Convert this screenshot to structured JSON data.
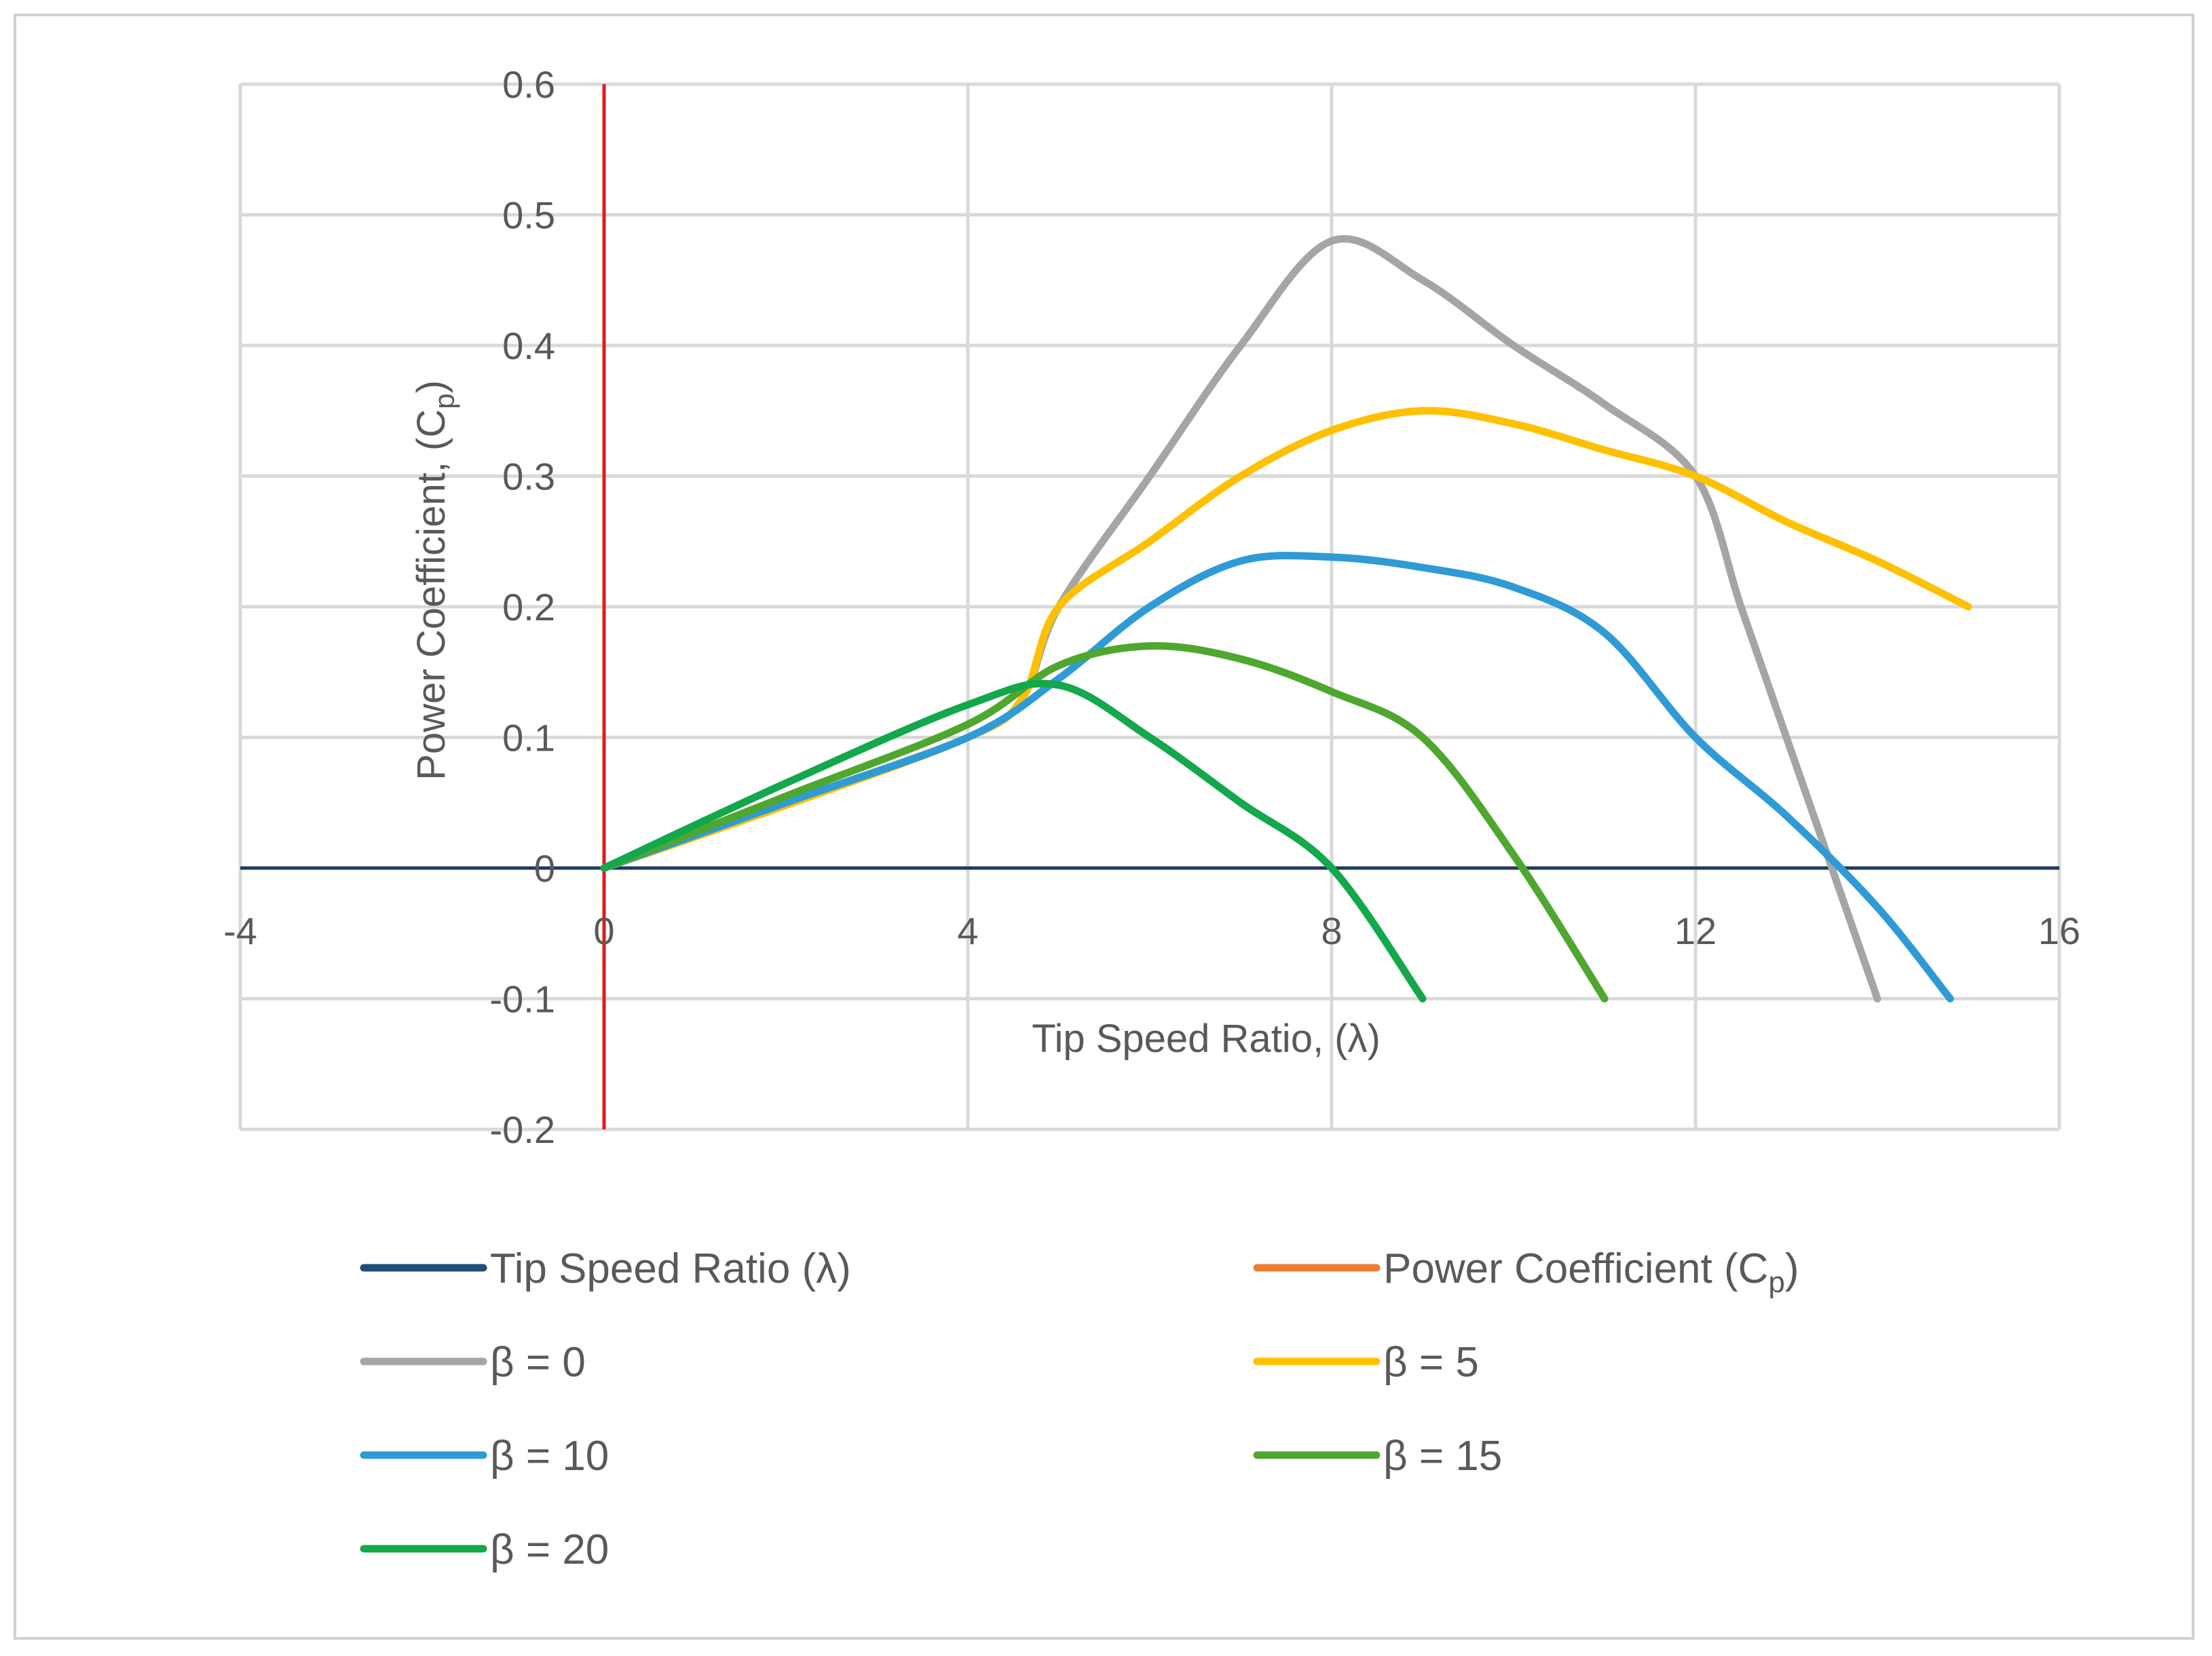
{
  "chart_data": {
    "type": "line",
    "title": "",
    "xlabel": "Tip Speed Ratio, (λ)",
    "ylabel_main": "Power Coefficient, (C",
    "ylabel_sub": "p",
    "ylabel_end": ")",
    "xlim": [
      -4,
      16
    ],
    "ylim": [
      -0.2,
      0.6
    ],
    "xticks": [
      -4,
      0,
      4,
      8,
      12,
      16
    ],
    "yticks": [
      -0.2,
      -0.1,
      0,
      0.1,
      0.2,
      0.3,
      0.4,
      0.5,
      0.6
    ],
    "grid": true,
    "legend_position": "bottom",
    "reference_lines": [
      {
        "name": "Tip Speed Ratio (λ)",
        "orientation": "horizontal",
        "at": 0,
        "color": "#1f3a60"
      },
      {
        "name": "Power Coefficient (Cp)",
        "orientation": "vertical",
        "at": 0,
        "color": "#e41a1c"
      }
    ],
    "legend": [
      {
        "main": "Tip Speed Ratio (λ)",
        "sub": "",
        "end": "",
        "color": "#1f4e79"
      },
      {
        "main": "Power Coefficient (C",
        "sub": "p",
        "end": ")",
        "color": "#ed7d31"
      },
      {
        "main": "β = 0",
        "sub": "",
        "end": "",
        "color": "#a5a5a5"
      },
      {
        "main": "β = 5",
        "sub": "",
        "end": "",
        "color": "#ffc000"
      },
      {
        "main": "β = 10",
        "sub": "",
        "end": "",
        "color": "#2e9bd6"
      },
      {
        "main": "β = 15",
        "sub": "",
        "end": "",
        "color": "#4ea72e"
      },
      {
        "main": "β = 20",
        "sub": "",
        "end": "",
        "color": "#12a84b"
      }
    ],
    "series": [
      {
        "name": "β = 0",
        "color": "#a5a5a5",
        "x": [
          0,
          2,
          4,
          4.6,
          5,
          6,
          7,
          8,
          9,
          10,
          11,
          12,
          12.5,
          13,
          14
        ],
        "y": [
          0,
          0.05,
          0.1,
          0.13,
          0.2,
          0.3,
          0.4,
          0.48,
          0.45,
          0.4,
          0.355,
          0.3,
          0.2,
          0.1,
          -0.1
        ]
      },
      {
        "name": "β = 5",
        "color": "#ffc000",
        "x": [
          0,
          2,
          4,
          4.6,
          5,
          6,
          7,
          8,
          9,
          10,
          11,
          12,
          13,
          14,
          15
        ],
        "y": [
          0,
          0.048,
          0.1,
          0.13,
          0.2,
          0.25,
          0.3,
          0.335,
          0.35,
          0.34,
          0.32,
          0.3,
          0.265,
          0.235,
          0.2
        ]
      },
      {
        "name": "β = 10",
        "color": "#2e9bd6",
        "x": [
          0,
          2,
          4,
          5,
          6,
          7,
          8,
          9,
          10,
          11,
          12,
          13,
          14,
          14.8
        ],
        "y": [
          0,
          0.05,
          0.1,
          0.145,
          0.2,
          0.235,
          0.238,
          0.23,
          0.215,
          0.18,
          0.1,
          0.04,
          -0.03,
          -0.1
        ]
      },
      {
        "name": "β = 15",
        "color": "#4ea72e",
        "x": [
          0,
          2,
          4,
          5,
          6,
          7,
          8,
          9,
          10,
          11
        ],
        "y": [
          0,
          0.055,
          0.11,
          0.155,
          0.17,
          0.16,
          0.135,
          0.1,
          0.01,
          -0.1
        ]
      },
      {
        "name": "β = 20",
        "color": "#12a84b",
        "x": [
          0,
          2,
          4,
          5,
          6,
          7,
          8,
          9
        ],
        "y": [
          0,
          0.065,
          0.125,
          0.14,
          0.1,
          0.05,
          0,
          -0.1
        ]
      }
    ]
  }
}
